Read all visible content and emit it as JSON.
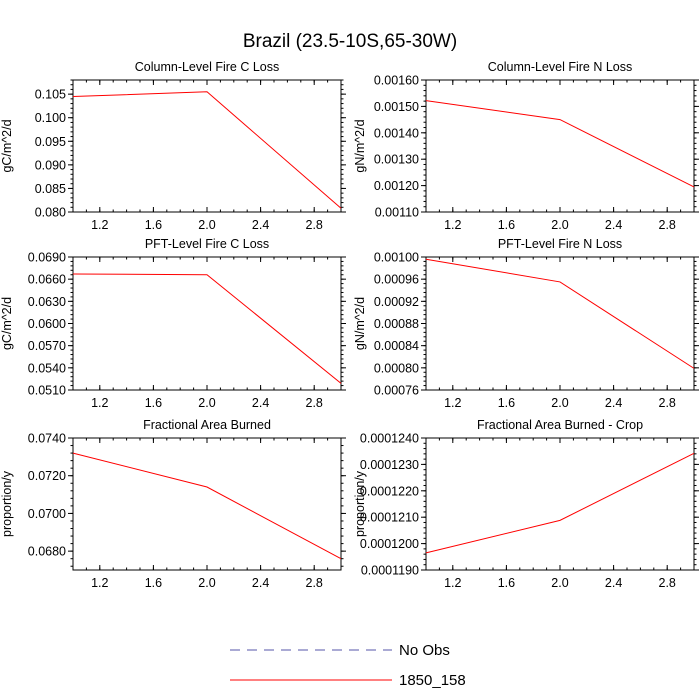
{
  "figure_title": "Brazil (23.5-10S,65-30W)",
  "legend": [
    {
      "label": "No Obs",
      "color": "#5555aa",
      "dashed": true
    },
    {
      "label": "1850_158",
      "color": "#ff0000",
      "dashed": false
    }
  ],
  "chart_data": [
    {
      "type": "line",
      "title": "Column-Level Fire C Loss",
      "ylabel": "gC/m^2/d",
      "xlim": [
        1,
        3
      ],
      "ylim": [
        0.08,
        0.108
      ],
      "xticks": [
        1.2,
        1.6,
        2.0,
        2.4,
        2.8
      ],
      "xtick_labels": [
        "1.2",
        "1.6",
        "2.0",
        "2.4",
        "2.8"
      ],
      "yticks": [
        0.08,
        0.085,
        0.09,
        0.095,
        0.1,
        0.105
      ],
      "ytick_labels": [
        "0.080",
        "0.085",
        "0.090",
        "0.095",
        "0.100",
        "0.105"
      ],
      "series": [
        {
          "name": "1850_158",
          "x": [
            1,
            2,
            3
          ],
          "y": [
            0.1045,
            0.1055,
            0.0808
          ]
        }
      ]
    },
    {
      "type": "line",
      "title": "Column-Level Fire N Loss",
      "ylabel": "gN/m^2/d",
      "xlim": [
        1,
        3
      ],
      "ylim": [
        0.0011,
        0.0016
      ],
      "xticks": [
        1.2,
        1.6,
        2.0,
        2.4,
        2.8
      ],
      "xtick_labels": [
        "1.2",
        "1.6",
        "2.0",
        "2.4",
        "2.8"
      ],
      "yticks": [
        0.0011,
        0.0012,
        0.0013,
        0.0014,
        0.0015,
        0.0016
      ],
      "ytick_labels": [
        "0.00110",
        "0.00120",
        "0.00130",
        "0.00140",
        "0.00150",
        "0.00160"
      ],
      "series": [
        {
          "name": "1850_158",
          "x": [
            1,
            2,
            3
          ],
          "y": [
            0.001522,
            0.00145,
            0.001195
          ]
        }
      ]
    },
    {
      "type": "line",
      "title": "PFT-Level Fire C Loss",
      "ylabel": "gC/m^2/d",
      "xlim": [
        1,
        3
      ],
      "ylim": [
        0.051,
        0.069
      ],
      "xticks": [
        1.2,
        1.6,
        2.0,
        2.4,
        2.8
      ],
      "xtick_labels": [
        "1.2",
        "1.6",
        "2.0",
        "2.4",
        "2.8"
      ],
      "yticks": [
        0.051,
        0.054,
        0.057,
        0.06,
        0.063,
        0.066,
        0.069
      ],
      "ytick_labels": [
        "0.0510",
        "0.0540",
        "0.0570",
        "0.0600",
        "0.0630",
        "0.0660",
        "0.0690"
      ],
      "series": [
        {
          "name": "1850_158",
          "x": [
            1,
            2,
            3
          ],
          "y": [
            0.0667,
            0.0666,
            0.0519
          ]
        }
      ]
    },
    {
      "type": "line",
      "title": "PFT-Level Fire N Loss",
      "ylabel": "gN/m^2/d",
      "xlim": [
        1,
        3
      ],
      "ylim": [
        0.00076,
        0.001
      ],
      "xticks": [
        1.2,
        1.6,
        2.0,
        2.4,
        2.8
      ],
      "xtick_labels": [
        "1.2",
        "1.6",
        "2.0",
        "2.4",
        "2.8"
      ],
      "yticks": [
        0.00076,
        0.0008,
        0.00084,
        0.00088,
        0.00092,
        0.00096,
        0.001
      ],
      "ytick_labels": [
        "0.00076",
        "0.00080",
        "0.00084",
        "0.00088",
        "0.00092",
        "0.00096",
        "0.00100"
      ],
      "series": [
        {
          "name": "1850_158",
          "x": [
            1,
            2,
            3
          ],
          "y": [
            0.000996,
            0.000955,
            0.000799
          ]
        }
      ]
    },
    {
      "type": "line",
      "title": "Fractional Area Burned",
      "ylabel": "proportion/y",
      "xlim": [
        1,
        3
      ],
      "ylim": [
        0.067,
        0.074
      ],
      "xticks": [
        1.2,
        1.6,
        2.0,
        2.4,
        2.8
      ],
      "xtick_labels": [
        "1.2",
        "1.6",
        "2.0",
        "2.4",
        "2.8"
      ],
      "yticks": [
        0.068,
        0.07,
        0.072,
        0.074
      ],
      "ytick_labels": [
        "0.0680",
        "0.0700",
        "0.0720",
        "0.0740"
      ],
      "series": [
        {
          "name": "1850_158",
          "x": [
            1,
            2,
            3
          ],
          "y": [
            0.0732,
            0.0714,
            0.0676
          ]
        }
      ]
    },
    {
      "type": "line",
      "title": "Fractional Area Burned - Crop",
      "ylabel": "proportion/y",
      "xlim": [
        1,
        3
      ],
      "ylim": [
        0.000119,
        0.000124
      ],
      "xticks": [
        1.2,
        1.6,
        2.0,
        2.4,
        2.8
      ],
      "xtick_labels": [
        "1.2",
        "1.6",
        "2.0",
        "2.4",
        "2.8"
      ],
      "yticks": [
        0.000119,
        0.00012,
        0.000121,
        0.000122,
        0.000123,
        0.000124
      ],
      "ytick_labels": [
        "0.0001190",
        "0.0001200",
        "0.0001210",
        "0.0001220",
        "0.0001230",
        "0.0001240"
      ],
      "series": [
        {
          "name": "1850_158",
          "x": [
            1,
            2,
            3
          ],
          "y": [
            0.00011965,
            0.00012088,
            0.00012342
          ]
        }
      ]
    }
  ]
}
